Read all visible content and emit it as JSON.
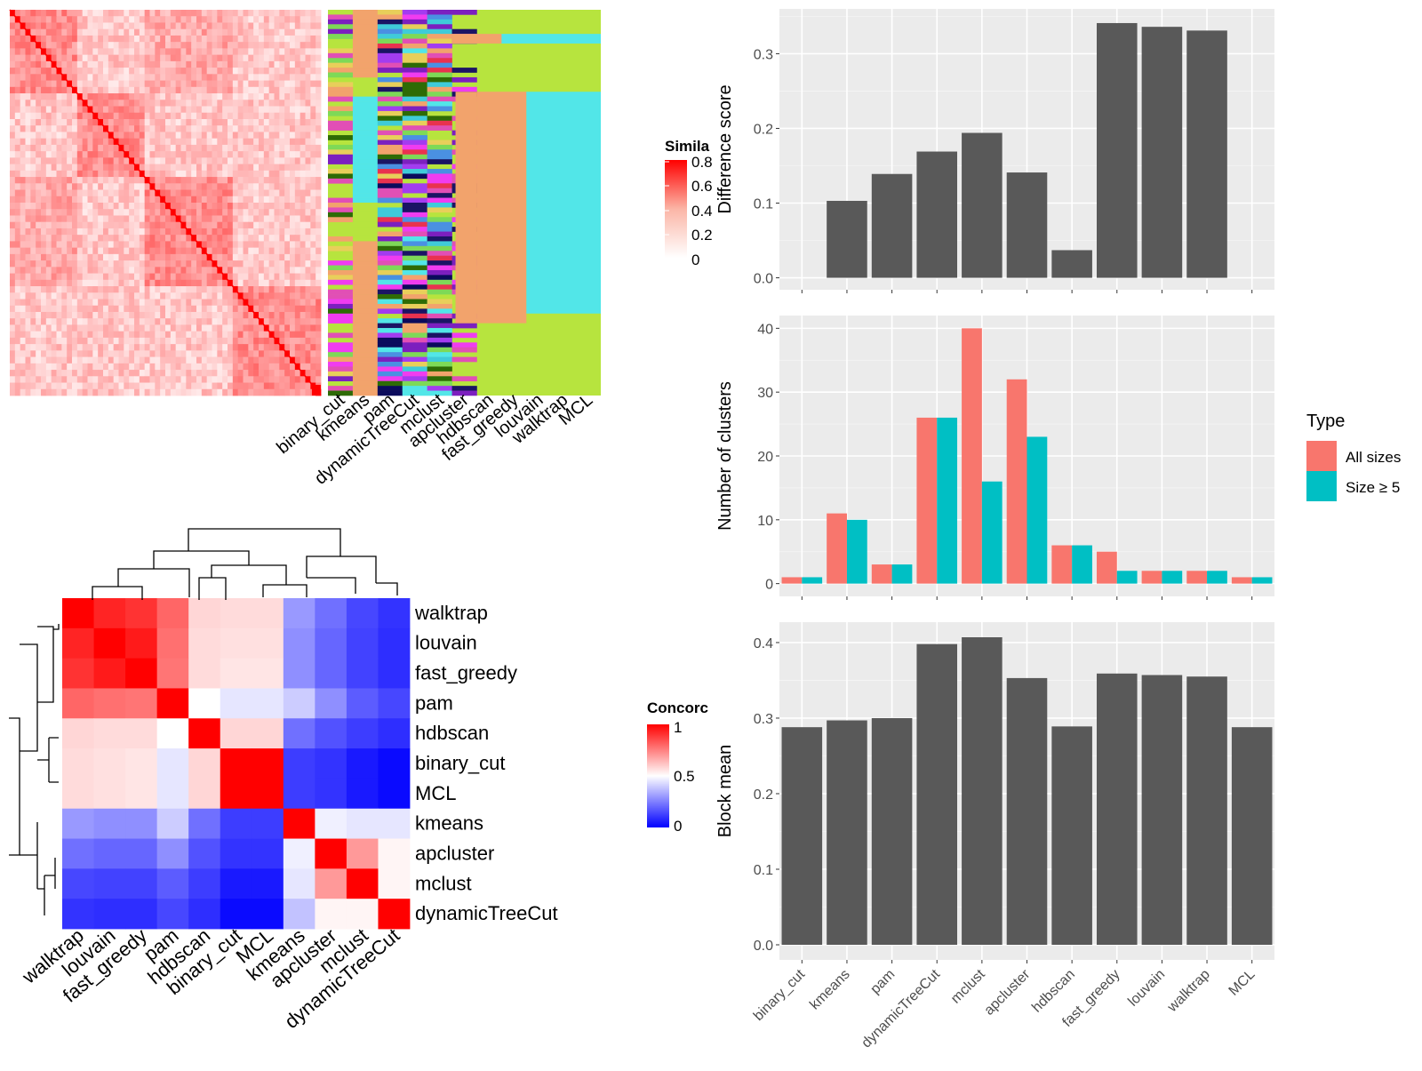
{
  "similarity_legend": {
    "title": "Simila",
    "ticks": [
      "0.8",
      "0.6",
      "0.4",
      "0.2",
      "0"
    ]
  },
  "concordance_legend": {
    "title": "Concorc",
    "ticks": [
      "1",
      "0.5",
      "0"
    ]
  },
  "type_legend": {
    "title": "Type",
    "items": [
      "All sizes",
      "Size ≥ 5"
    ]
  },
  "colors": {
    "bar": "#595959",
    "all_sizes": "#F8766D",
    "size5": "#00BFC4",
    "panel_bg": "#EBEBEB",
    "grid": "#ffffff"
  },
  "chart_data": [
    {
      "type": "heatmap",
      "name_note": "consensus similarity matrix",
      "legend_title": "Simila",
      "value_range": [
        0,
        0.8
      ]
    },
    {
      "type": "heatmap",
      "name_note": "cluster membership by method",
      "columns": [
        "binary_cut",
        "kmeans",
        "pam",
        "dynamicTreeCut",
        "mclust",
        "apcluster",
        "hdbscan",
        "fast_greedy",
        "louvain",
        "walktrap",
        "MCL"
      ]
    },
    {
      "type": "heatmap",
      "rows": [
        "walktrap",
        "louvain",
        "fast_greedy",
        "pam",
        "hdbscan",
        "binary_cut",
        "MCL",
        "kmeans",
        "apcluster",
        "mclust",
        "dynamicTreeCut"
      ],
      "columns": [
        "walktrap",
        "louvain",
        "fast_greedy",
        "pam",
        "hdbscan",
        "binary_cut",
        "MCL",
        "kmeans",
        "apcluster",
        "mclust",
        "dynamicTreeCut"
      ],
      "values": [
        [
          1.0,
          0.93,
          0.9,
          0.8,
          0.58,
          0.57,
          0.57,
          0.3,
          0.22,
          0.14,
          0.1
        ],
        [
          0.93,
          1.0,
          0.95,
          0.78,
          0.57,
          0.56,
          0.56,
          0.28,
          0.2,
          0.13,
          0.09
        ],
        [
          0.9,
          0.95,
          1.0,
          0.77,
          0.57,
          0.55,
          0.55,
          0.28,
          0.2,
          0.13,
          0.09
        ],
        [
          0.8,
          0.78,
          0.77,
          1.0,
          0.5,
          0.45,
          0.45,
          0.4,
          0.28,
          0.18,
          0.14
        ],
        [
          0.58,
          0.57,
          0.57,
          0.5,
          1.0,
          0.58,
          0.58,
          0.22,
          0.16,
          0.12,
          0.09
        ],
        [
          0.57,
          0.56,
          0.55,
          0.45,
          0.58,
          1.0,
          1.0,
          0.12,
          0.1,
          0.05,
          0.02
        ],
        [
          0.57,
          0.56,
          0.55,
          0.45,
          0.58,
          1.0,
          1.0,
          0.12,
          0.1,
          0.05,
          0.02
        ],
        [
          0.3,
          0.28,
          0.28,
          0.4,
          0.22,
          0.12,
          0.12,
          1.0,
          0.47,
          0.45,
          0.45
        ],
        [
          0.22,
          0.2,
          0.2,
          0.28,
          0.16,
          0.1,
          0.1,
          0.47,
          1.0,
          0.7,
          0.52
        ],
        [
          0.14,
          0.13,
          0.13,
          0.18,
          0.12,
          0.05,
          0.05,
          0.45,
          0.7,
          1.0,
          0.52
        ],
        [
          0.1,
          0.09,
          0.09,
          0.14,
          0.09,
          0.02,
          0.02,
          0.38,
          0.52,
          0.52,
          1.0
        ]
      ],
      "legend_title": "Concorc",
      "value_range": [
        0,
        1
      ]
    },
    {
      "type": "bar",
      "categories": [
        "binary_cut",
        "kmeans",
        "pam",
        "dynamicTreeCut",
        "mclust",
        "apcluster",
        "hdbscan",
        "fast_greedy",
        "louvain",
        "walktrap",
        "MCL"
      ],
      "values": [
        0,
        0.103,
        0.139,
        0.169,
        0.194,
        0.141,
        0.037,
        0.341,
        0.336,
        0.331,
        0
      ],
      "ylabel": "Difference score",
      "ylim": [
        -0.016,
        0.36
      ],
      "yticks": [
        "0.0",
        "0.1",
        "0.2",
        "0.3"
      ]
    },
    {
      "type": "bar",
      "categories": [
        "binary_cut",
        "kmeans",
        "pam",
        "dynamicTreeCut",
        "mclust",
        "apcluster",
        "hdbscan",
        "fast_greedy",
        "louvain",
        "walktrap",
        "MCL"
      ],
      "series": [
        {
          "name": "All sizes",
          "values": [
            1,
            11,
            3,
            26,
            40,
            32,
            6,
            5,
            2,
            2,
            1
          ]
        },
        {
          "name": "Size ≥ 5",
          "values": [
            1,
            10,
            3,
            26,
            16,
            23,
            6,
            2,
            2,
            2,
            1
          ]
        }
      ],
      "ylabel": "Number of clusters",
      "ylim": [
        -2,
        42
      ],
      "yticks": [
        "0",
        "10",
        "20",
        "30",
        "40"
      ],
      "legend": "right"
    },
    {
      "type": "bar",
      "categories": [
        "binary_cut",
        "kmeans",
        "pam",
        "dynamicTreeCut",
        "mclust",
        "apcluster",
        "hdbscan",
        "fast_greedy",
        "louvain",
        "walktrap",
        "MCL"
      ],
      "values": [
        0.288,
        0.297,
        0.3,
        0.398,
        0.407,
        0.353,
        0.289,
        0.359,
        0.357,
        0.355,
        0.288
      ],
      "ylabel": "Block mean",
      "ylim": [
        -0.02,
        0.427
      ],
      "yticks": [
        "0.0",
        "0.1",
        "0.2",
        "0.3",
        "0.4"
      ]
    }
  ]
}
